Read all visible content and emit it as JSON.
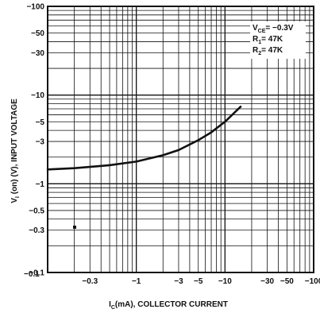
{
  "chart_data": {
    "type": "line",
    "x_scale": "log",
    "y_scale": "log",
    "x_data_range": [
      -0.1,
      -100
    ],
    "y_data_range": [
      -0.1,
      -100
    ],
    "x_ticks": [
      {
        "value": -0.3,
        "label": "−0.3"
      },
      {
        "value": -1,
        "label": "−1"
      },
      {
        "value": -3,
        "label": "−3"
      },
      {
        "value": -5,
        "label": "−5"
      },
      {
        "value": -10,
        "label": "−10"
      },
      {
        "value": -30,
        "label": "−30"
      },
      {
        "value": -50,
        "label": "−50"
      },
      {
        "value": -100,
        "label": "−100"
      }
    ],
    "x_min_label": "−0.1",
    "y_ticks": [
      {
        "value": -100,
        "label": "−100"
      },
      {
        "value": -50,
        "label": "−50"
      },
      {
        "value": -30,
        "label": "−30"
      },
      {
        "value": -10,
        "label": "−10"
      },
      {
        "value": -5,
        "label": "−5"
      },
      {
        "value": -3,
        "label": "−3"
      },
      {
        "value": -1,
        "label": "−1"
      },
      {
        "value": -0.5,
        "label": "−0.5"
      },
      {
        "value": -0.3,
        "label": "−0.3"
      },
      {
        "value": -0.1,
        "label": "−0.1"
      }
    ],
    "xlabel": {
      "main": "I",
      "sub": "C",
      "rest": "(mA), COLLECTOR CURRENT"
    },
    "ylabel": {
      "main": "V",
      "sub": "I",
      "rest": " (on) (V), INPUT VOLTAGE"
    },
    "legend": [
      {
        "main": "V",
        "sub": "CE",
        "rest": "= −0.3V"
      },
      {
        "main": "R",
        "sub": "1",
        "rest": "= 47K"
      },
      {
        "main": "R",
        "sub": "2",
        "rest": "= 47K"
      }
    ],
    "legend_position": "top-right",
    "grid": true,
    "series": [
      {
        "x": [
          -0.1,
          -0.2,
          -0.3,
          -0.5,
          -1,
          -2,
          -3,
          -5,
          -7,
          -10,
          -15
        ],
        "y": [
          -1.45,
          -1.5,
          -1.55,
          -1.62,
          -1.78,
          -2.1,
          -2.4,
          -3.1,
          -3.8,
          -5.0,
          -7.4
        ]
      }
    ]
  }
}
